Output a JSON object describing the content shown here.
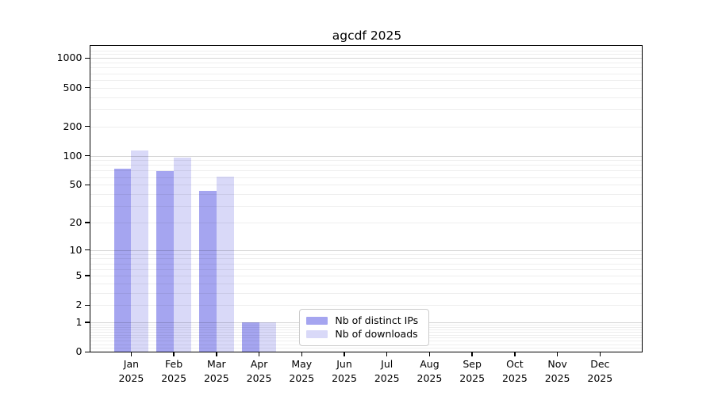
{
  "title": "agcdf 2025",
  "chart_data": {
    "type": "bar",
    "title": "agcdf 2025",
    "categories": [
      "Jan 2025",
      "Feb 2025",
      "Mar 2025",
      "Apr 2025",
      "May 2025",
      "Jun 2025",
      "Jul 2025",
      "Aug 2025",
      "Sep 2025",
      "Oct 2025",
      "Nov 2025",
      "Dec 2025"
    ],
    "series": [
      {
        "name": "Nb of distinct IPs",
        "color": "#a5a5f0",
        "values": [
          74,
          70,
          43,
          1,
          0,
          0,
          0,
          0,
          0,
          0,
          0,
          0
        ]
      },
      {
        "name": "Nb of downloads",
        "color": "#d9d9f8",
        "values": [
          113,
          96,
          61,
          1,
          0,
          0,
          0,
          0,
          0,
          0,
          0,
          0
        ]
      }
    ],
    "xlabel": "",
    "ylabel": "",
    "yscale": "log1p",
    "ylim": [
      0,
      1325
    ],
    "y_ticks": [
      0,
      1,
      2,
      5,
      10,
      20,
      50,
      100,
      200,
      500,
      1000
    ],
    "y_major_gridlines": [
      1,
      10,
      100,
      1000
    ],
    "y_minor_gridlines": [
      0.1,
      0.2,
      0.3,
      0.4,
      0.5,
      0.6,
      0.7,
      0.8,
      0.9,
      2,
      3,
      4,
      5,
      6,
      7,
      8,
      9,
      20,
      30,
      40,
      50,
      60,
      70,
      80,
      90,
      200,
      300,
      400,
      500,
      600,
      700,
      800,
      900,
      1100,
      1200
    ],
    "grid": true,
    "legend_position": "lower center inside plot"
  },
  "legend": {
    "items": [
      {
        "label": "Nb of distinct IPs"
      },
      {
        "label": "Nb of downloads"
      }
    ]
  }
}
